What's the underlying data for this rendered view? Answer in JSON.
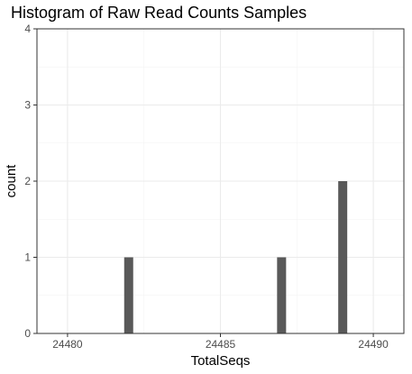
{
  "chart_data": {
    "type": "bar",
    "title": "Histogram of Raw Read Counts Samples",
    "xlabel": "TotalSeqs",
    "ylabel": "count",
    "xlim": [
      24479,
      24491
    ],
    "ylim": [
      0,
      4
    ],
    "x_ticks": [
      24480,
      24485,
      24490
    ],
    "y_ticks": [
      0,
      1,
      2,
      3,
      4
    ],
    "bins": [
      {
        "x": 24482,
        "count": 1
      },
      {
        "x": 24487,
        "count": 1
      },
      {
        "x": 24489,
        "count": 2
      }
    ],
    "bar_color": "#595959",
    "grid": true
  }
}
